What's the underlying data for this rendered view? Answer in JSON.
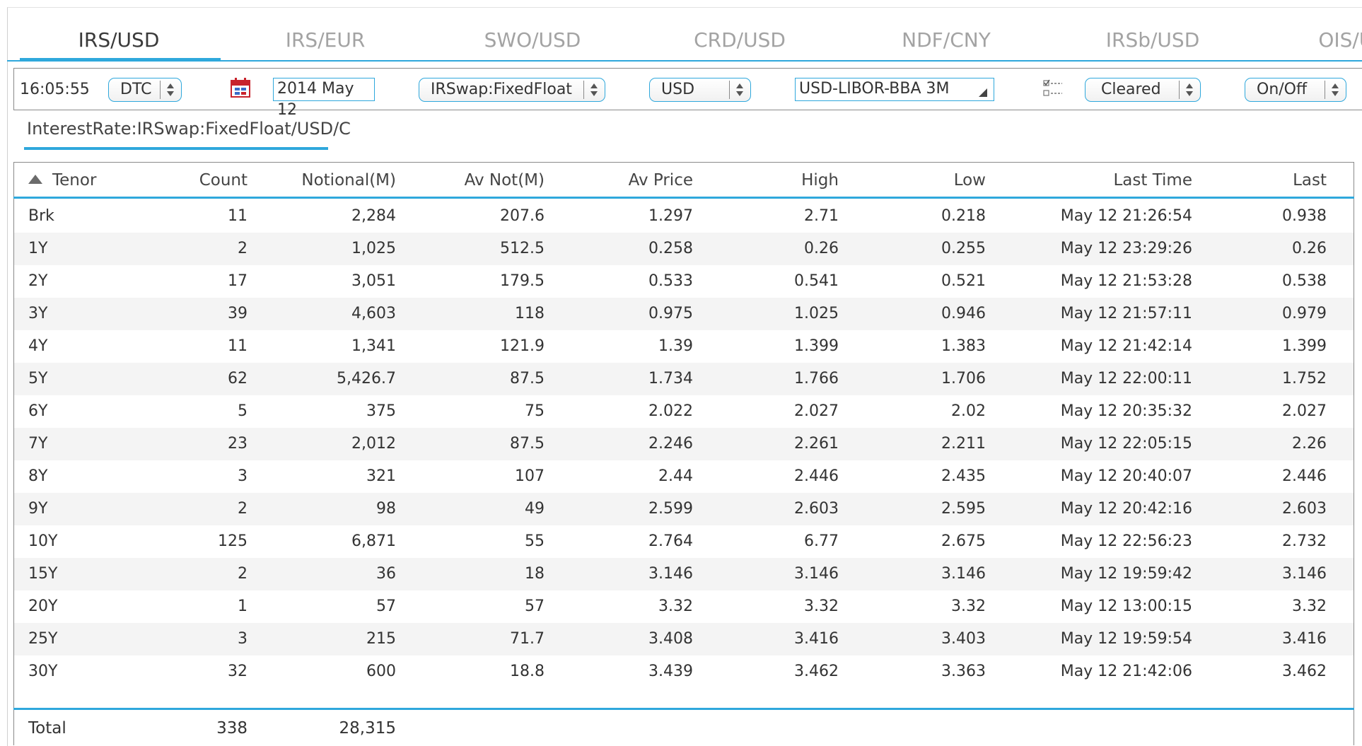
{
  "tabs": [
    "IRS/USD",
    "IRS/EUR",
    "SWO/USD",
    "CRD/USD",
    "NDF/CNY",
    "IRSb/USD",
    "OIS/USD"
  ],
  "toolbar": {
    "time": "16:05:55",
    "mode": "DTC",
    "date": "2014 May 12",
    "product": "IRSwap:FixedFloat",
    "currency": "USD",
    "index": "USD-LIBOR-BBA 3M",
    "clearing": "Cleared",
    "toggle": "On/Off"
  },
  "path_label": "InterestRate:IRSwap:FixedFloat/USD/C",
  "table": {
    "headers": {
      "tenor": "Tenor",
      "count": "Count",
      "notional": "Notional(M)",
      "av_not": "Av Not(M)",
      "av_price": "Av Price",
      "high": "High",
      "low": "Low",
      "last_time": "Last Time",
      "last": "Last"
    },
    "rows": [
      [
        "Brk",
        "11",
        "2,284",
        "207.6",
        "1.297",
        "2.71",
        "0.218",
        "May 12 21:26:54",
        "0.938"
      ],
      [
        "1Y",
        "2",
        "1,025",
        "512.5",
        "0.258",
        "0.26",
        "0.255",
        "May 12 23:29:26",
        "0.26"
      ],
      [
        "2Y",
        "17",
        "3,051",
        "179.5",
        "0.533",
        "0.541",
        "0.521",
        "May 12 21:53:28",
        "0.538"
      ],
      [
        "3Y",
        "39",
        "4,603",
        "118",
        "0.975",
        "1.025",
        "0.946",
        "May 12 21:57:11",
        "0.979"
      ],
      [
        "4Y",
        "11",
        "1,341",
        "121.9",
        "1.39",
        "1.399",
        "1.383",
        "May 12 21:42:14",
        "1.399"
      ],
      [
        "5Y",
        "62",
        "5,426.7",
        "87.5",
        "1.734",
        "1.766",
        "1.706",
        "May 12 22:00:11",
        "1.752"
      ],
      [
        "6Y",
        "5",
        "375",
        "75",
        "2.022",
        "2.027",
        "2.02",
        "May 12 20:35:32",
        "2.027"
      ],
      [
        "7Y",
        "23",
        "2,012",
        "87.5",
        "2.246",
        "2.261",
        "2.211",
        "May 12 22:05:15",
        "2.26"
      ],
      [
        "8Y",
        "3",
        "321",
        "107",
        "2.44",
        "2.446",
        "2.435",
        "May 12 20:40:07",
        "2.446"
      ],
      [
        "9Y",
        "2",
        "98",
        "49",
        "2.599",
        "2.603",
        "2.595",
        "May 12 20:42:16",
        "2.603"
      ],
      [
        "10Y",
        "125",
        "6,871",
        "55",
        "2.764",
        "6.77",
        "2.675",
        "May 12 22:56:23",
        "2.732"
      ],
      [
        "15Y",
        "2",
        "36",
        "18",
        "3.146",
        "3.146",
        "3.146",
        "May 12 19:59:42",
        "3.146"
      ],
      [
        "20Y",
        "1",
        "57",
        "57",
        "3.32",
        "3.32",
        "3.32",
        "May 12 13:00:15",
        "3.32"
      ],
      [
        "25Y",
        "3",
        "215",
        "71.7",
        "3.408",
        "3.416",
        "3.403",
        "May 12 19:59:54",
        "3.416"
      ],
      [
        "30Y",
        "32",
        "600",
        "18.8",
        "3.439",
        "3.462",
        "3.363",
        "May 12 21:42:06",
        "3.462"
      ]
    ],
    "total": {
      "label": "Total",
      "count": "338",
      "notional": "28,315"
    }
  },
  "colors": {
    "accent": "#2fa8dc",
    "row_alt": "#f4f4f4",
    "border": "#8a8a8a",
    "tab_inactive": "#a3a3a3"
  },
  "icons": {
    "calendar": "calendar-icon",
    "filter": "checklist-icon",
    "sort": "sort-ascending-icon"
  }
}
